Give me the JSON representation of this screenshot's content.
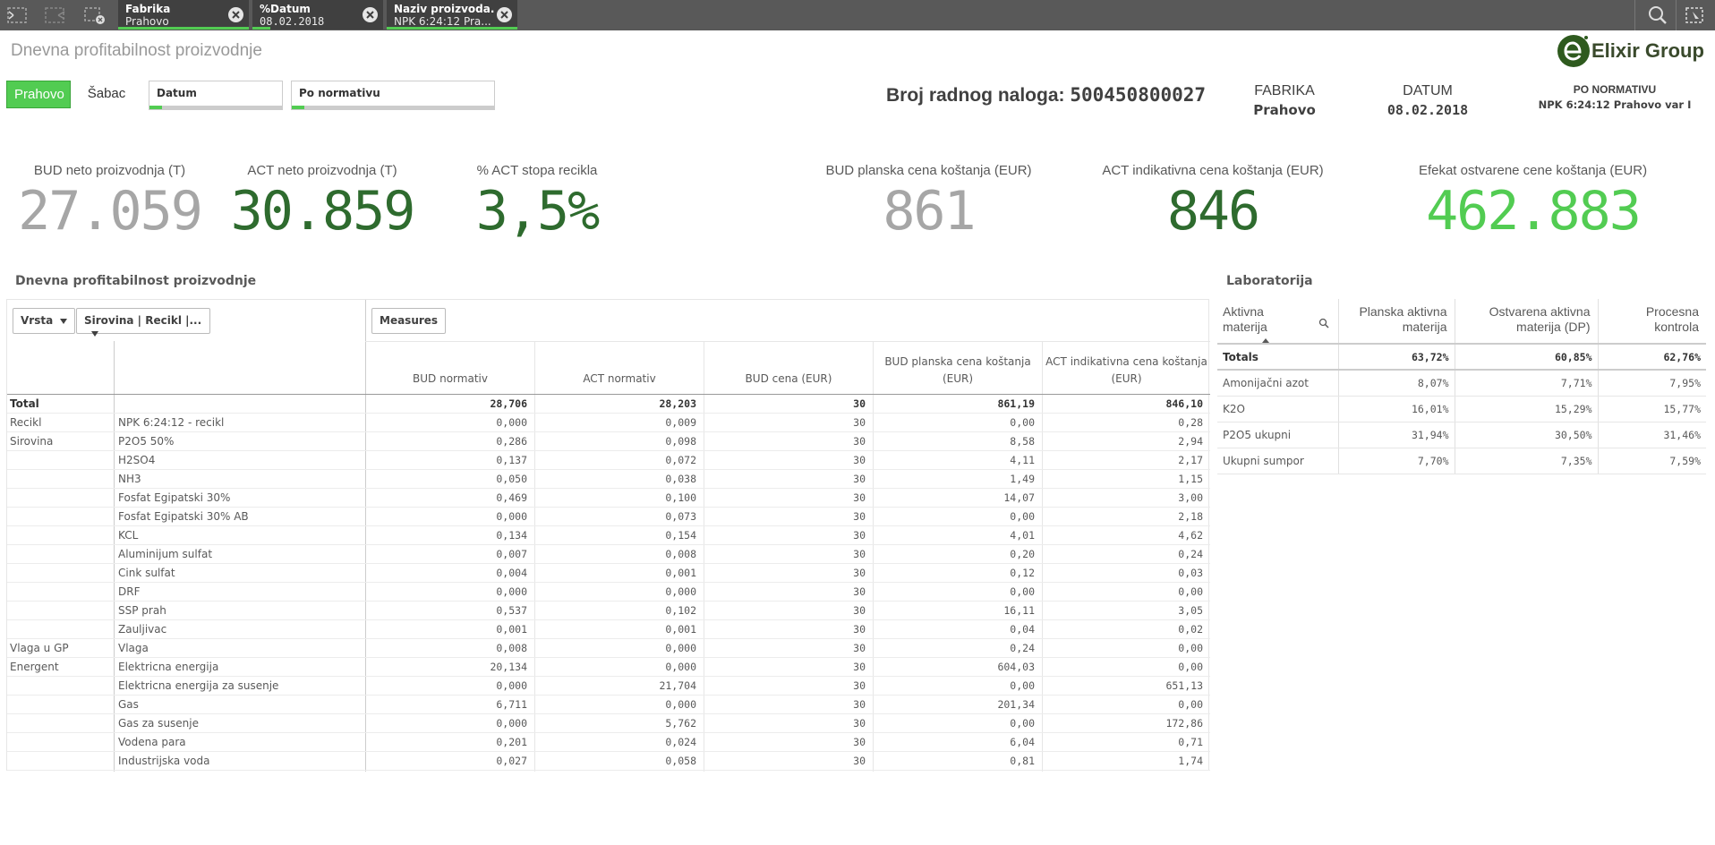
{
  "topbar": {
    "selections": [
      {
        "field": "Fabrika",
        "value": "Prahovo"
      },
      {
        "field": "%Datum",
        "value": "08.02.2018"
      },
      {
        "field": "Naziv proizvoda...",
        "value": "NPK 6:24:12 Pra..."
      }
    ]
  },
  "sheet": {
    "title": "Dnevna profitabilnost proizvodnje"
  },
  "logo": {
    "text": "Elixir Group"
  },
  "filters": {
    "buttons": [
      "Prahovo",
      "Šabac"
    ],
    "active": "Prahovo",
    "boxes": [
      "Datum",
      "Po normativu"
    ]
  },
  "header": {
    "work_order_label": "Broj radnog naloga:",
    "work_order_value": "500450800027",
    "fabrika_label": "FABRIKA",
    "fabrika_value": "Prahovo",
    "datum_label": "DATUM",
    "datum_value": "08.02.2018",
    "normativ_label": "PO NORMATIVU",
    "normativ_value": "NPK 6:24:12 Prahovo var I"
  },
  "kpis": [
    {
      "label": "BUD neto proizvodnja (T)",
      "value": "27.059",
      "color": "#a6a6a6"
    },
    {
      "label": "ACT neto proizvodnja (T)",
      "value": "30.859",
      "color": "#2e6b2e"
    },
    {
      "label": "% ACT stopa recikla",
      "value": "3,5%",
      "color": "#2e6b2e"
    },
    {
      "label": "BUD planska cena koštanja (EUR)",
      "value": "861",
      "color": "#a6a6a6"
    },
    {
      "label": "ACT indikativna cena koštanja (EUR)",
      "value": "846",
      "color": "#2e6b2e"
    },
    {
      "label": "Efekat ostvarene cene koštanja (EUR)",
      "value": "462.883",
      "color": "#52cc52"
    }
  ],
  "pivot": {
    "title": "Dnevna profitabilnost proizvodnje",
    "dim1": "Vrsta",
    "dim2": "Sirovina | Recikl |...",
    "measures_btn": "Measures",
    "measure_headers": [
      "BUD normativ",
      "ACT normativ",
      "BUD cena (EUR)",
      "BUD planska cena koštanja (EUR)",
      "ACT indikativna cena koštanja (EUR)"
    ],
    "rows": [
      {
        "c1": "Total",
        "c2": "",
        "v": [
          "28,706",
          "28,203",
          "30",
          "861,19",
          "846,10"
        ]
      },
      {
        "c1": "Recikl",
        "c2": "NPK 6:24:12 - recikl",
        "v": [
          "0,000",
          "0,009",
          "30",
          "0,00",
          "0,28"
        ]
      },
      {
        "c1": "Sirovina",
        "c2": "P2O5 50%",
        "v": [
          "0,286",
          "0,098",
          "30",
          "8,58",
          "2,94"
        ]
      },
      {
        "c1": "",
        "c2": "H2SO4",
        "v": [
          "0,137",
          "0,072",
          "30",
          "4,11",
          "2,17"
        ]
      },
      {
        "c1": "",
        "c2": "NH3",
        "v": [
          "0,050",
          "0,038",
          "30",
          "1,49",
          "1,15"
        ]
      },
      {
        "c1": "",
        "c2": "Fosfat Egipatski 30%",
        "v": [
          "0,469",
          "0,100",
          "30",
          "14,07",
          "3,00"
        ]
      },
      {
        "c1": "",
        "c2": "Fosfat Egipatski 30% AB",
        "v": [
          "0,000",
          "0,073",
          "30",
          "0,00",
          "2,18"
        ]
      },
      {
        "c1": "",
        "c2": "KCL",
        "v": [
          "0,134",
          "0,154",
          "30",
          "4,01",
          "4,62"
        ]
      },
      {
        "c1": "",
        "c2": "Aluminijum sulfat",
        "v": [
          "0,007",
          "0,008",
          "30",
          "0,20",
          "0,24"
        ]
      },
      {
        "c1": "",
        "c2": "Cink sulfat",
        "v": [
          "0,004",
          "0,001",
          "30",
          "0,12",
          "0,03"
        ]
      },
      {
        "c1": "",
        "c2": "DRF",
        "v": [
          "0,000",
          "0,000",
          "30",
          "0,00",
          "0,00"
        ]
      },
      {
        "c1": "",
        "c2": "SSP prah",
        "v": [
          "0,537",
          "0,102",
          "30",
          "16,11",
          "3,05"
        ]
      },
      {
        "c1": "",
        "c2": "Zauljivac",
        "v": [
          "0,001",
          "0,001",
          "30",
          "0,04",
          "0,02"
        ]
      },
      {
        "c1": "Vlaga u GP",
        "c2": "Vlaga",
        "v": [
          "0,008",
          "0,000",
          "30",
          "0,24",
          "0,00"
        ]
      },
      {
        "c1": "Energent",
        "c2": "Elektricna energija",
        "v": [
          "20,134",
          "0,000",
          "30",
          "604,03",
          "0,00"
        ]
      },
      {
        "c1": "",
        "c2": "Elektricna energija za susenje",
        "v": [
          "0,000",
          "21,704",
          "30",
          "0,00",
          "651,13"
        ]
      },
      {
        "c1": "",
        "c2": "Gas",
        "v": [
          "6,711",
          "0,000",
          "30",
          "201,34",
          "0,00"
        ]
      },
      {
        "c1": "",
        "c2": "Gas za susenje",
        "v": [
          "0,000",
          "5,762",
          "30",
          "0,00",
          "172,86"
        ]
      },
      {
        "c1": "",
        "c2": "Vodena para",
        "v": [
          "0,201",
          "0,024",
          "30",
          "6,04",
          "0,71"
        ]
      },
      {
        "c1": "",
        "c2": "Industrijska voda",
        "v": [
          "0,027",
          "0,058",
          "30",
          "0,81",
          "1,74"
        ]
      }
    ]
  },
  "lab": {
    "title": "Laboratorija",
    "headers": [
      "Aktivna materija",
      "Planska aktivna materija",
      "Ostvarena aktivna materija (DP)",
      "Procesna kontrola"
    ],
    "totals": {
      "name": "Totals",
      "v": [
        "63,72%",
        "60,85%",
        "62,76%"
      ]
    },
    "rows": [
      {
        "name": "Amonijačni azot",
        "v": [
          "8,07%",
          "7,71%",
          "7,95%"
        ]
      },
      {
        "name": "K2O",
        "v": [
          "16,01%",
          "15,29%",
          "15,77%"
        ]
      },
      {
        "name": "P2O5 ukupni",
        "v": [
          "31,94%",
          "30,50%",
          "31,46%"
        ]
      },
      {
        "name": "Ukupni sumpor",
        "v": [
          "7,70%",
          "7,35%",
          "7,59%"
        ]
      }
    ]
  }
}
